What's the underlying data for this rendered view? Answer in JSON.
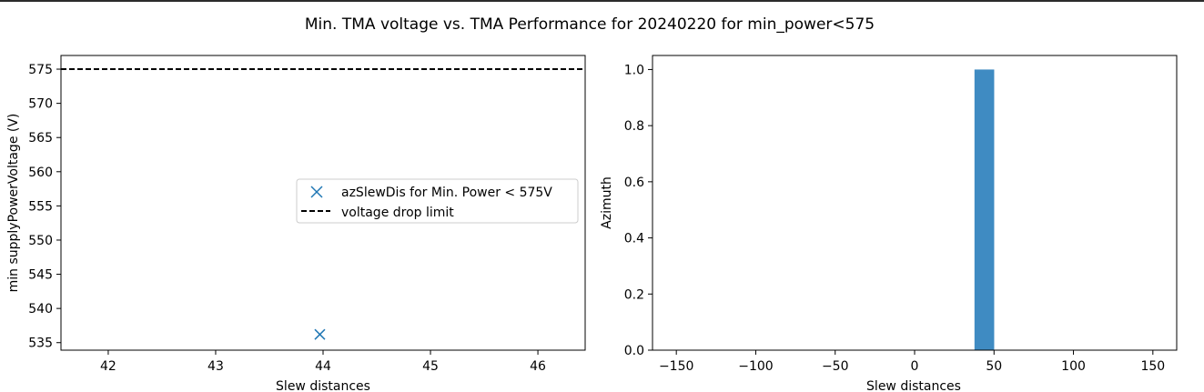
{
  "figure": {
    "title": "Min. TMA voltage vs. TMA Performance for 20240220 for min_power<575"
  },
  "chart_data": [
    {
      "type": "scatter",
      "xlabel": "Slew distances",
      "ylabel": "min supplyPowerVoltage (V)",
      "xlim": [
        41.56,
        46.44
      ],
      "ylim": [
        533.9,
        577.0
      ],
      "xticks": [
        42,
        43,
        44,
        45,
        46
      ],
      "yticks": [
        535,
        540,
        545,
        550,
        555,
        560,
        565,
        570,
        575
      ],
      "series": [
        {
          "name": "azSlewDis for Min. Power < 575V",
          "marker": "x",
          "color": "#1f77b4",
          "points": [
            [
              43.97,
              536.2
            ]
          ]
        }
      ],
      "hlines": [
        {
          "name": "voltage drop limit",
          "y": 575,
          "style": "dashed",
          "color": "#000000"
        }
      ],
      "legend": "center-right",
      "grid": false
    },
    {
      "type": "bar",
      "xlabel": "Slew distances",
      "ylabel": "Azimuth",
      "xlim": [
        -165,
        165
      ],
      "ylim": [
        0.0,
        1.05
      ],
      "xticks": [
        -150,
        -100,
        -50,
        0,
        50,
        100,
        150
      ],
      "yticks": [
        0.0,
        0.2,
        0.4,
        0.6,
        0.8,
        1.0
      ],
      "bars": [
        {
          "x0": 37.7,
          "x1": 50.1,
          "value": 1.0
        }
      ],
      "color": "#3f8bc2",
      "grid": false
    }
  ]
}
